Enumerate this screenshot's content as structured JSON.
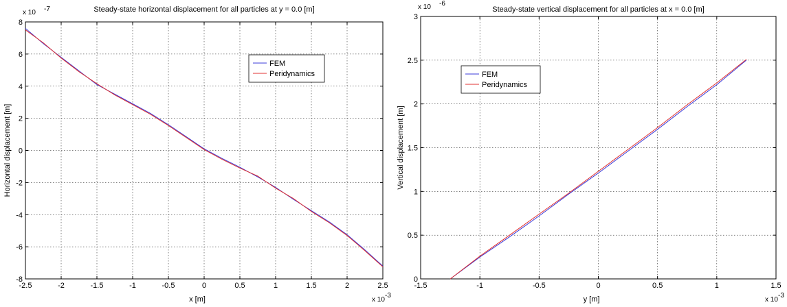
{
  "chart_data": [
    {
      "type": "line",
      "title": "Steady-state horizontal displacement for all particles at y = 0.0 [m]",
      "xlabel": "x [m]",
      "ylabel": "Horizontal displacement [m]",
      "x_multiplier": "x 10",
      "x_exponent": "-3",
      "y_multiplier": "x 10",
      "y_exponent": "-7",
      "xlim": [
        -2.5,
        2.5
      ],
      "ylim": [
        -8,
        8
      ],
      "xticks": [
        "-2.5",
        "-2",
        "-1.5",
        "-1",
        "-0.5",
        "0",
        "0.5",
        "1",
        "1.5",
        "2",
        "2.5"
      ],
      "yticks": [
        "-8",
        "-6",
        "-4",
        "-2",
        "0",
        "2",
        "4",
        "6",
        "8"
      ],
      "grid": true,
      "legend_position": "top-right",
      "series": [
        {
          "name": "FEM",
          "color": "#3a3ad8",
          "x": [
            -2.5,
            -2.25,
            -2.0,
            -1.75,
            -1.5,
            -1.25,
            -1.0,
            -0.75,
            -0.5,
            -0.25,
            0.0,
            0.25,
            0.5,
            0.75,
            1.0,
            1.25,
            1.5,
            1.75,
            2.0,
            2.25,
            2.5
          ],
          "y": [
            7.6,
            6.65,
            5.8,
            4.95,
            4.1,
            3.5,
            2.9,
            2.3,
            1.6,
            0.85,
            0.1,
            -0.5,
            -1.05,
            -1.65,
            -2.3,
            -3.05,
            -3.75,
            -4.45,
            -5.25,
            -6.2,
            -7.2
          ]
        },
        {
          "name": "Peridynamics",
          "color": "#e03030",
          "x": [
            -2.5,
            -2.25,
            -2.0,
            -1.75,
            -1.5,
            -1.25,
            -1.0,
            -0.75,
            -0.5,
            -0.25,
            0.0,
            0.25,
            0.5,
            0.75,
            1.0,
            1.25,
            1.5,
            1.75,
            2.0,
            2.25,
            2.5
          ],
          "y": [
            7.5,
            6.7,
            5.75,
            4.9,
            4.15,
            3.45,
            2.85,
            2.25,
            1.55,
            0.8,
            0.05,
            -0.55,
            -1.1,
            -1.6,
            -2.35,
            -3.0,
            -3.8,
            -4.5,
            -5.3,
            -6.25,
            -7.25
          ]
        }
      ]
    },
    {
      "type": "line",
      "title": "Steady-state vertical displacement for all particles at x = 0.0 [m]",
      "xlabel": "y [m]",
      "ylabel": "Vertical displacement [m]",
      "x_multiplier": "x 10",
      "x_exponent": "-3",
      "y_multiplier": "x 10",
      "y_exponent": "-6",
      "xlim": [
        -1.5,
        1.5
      ],
      "ylim": [
        0,
        3
      ],
      "xticks": [
        "-1.5",
        "-1",
        "-0.5",
        "0",
        "0.5",
        "1",
        "1.5"
      ],
      "yticks": [
        "0",
        "0.5",
        "1",
        "1.5",
        "2",
        "2.5",
        "3"
      ],
      "grid": true,
      "legend_position": "top-left",
      "series": [
        {
          "name": "FEM",
          "color": "#3a3ad8",
          "x": [
            -1.25,
            -1.0,
            -0.75,
            -0.5,
            -0.25,
            0.0,
            0.25,
            0.5,
            0.75,
            1.0,
            1.25
          ],
          "y": [
            0.0,
            0.25,
            0.48,
            0.72,
            0.97,
            1.21,
            1.46,
            1.71,
            1.97,
            2.22,
            2.5
          ]
        },
        {
          "name": "Peridynamics",
          "color": "#e03030",
          "x": [
            -1.25,
            -1.0,
            -0.75,
            -0.5,
            -0.25,
            0.0,
            0.25,
            0.5,
            0.75,
            1.0,
            1.25
          ],
          "y": [
            0.0,
            0.26,
            0.5,
            0.74,
            0.98,
            1.23,
            1.48,
            1.73,
            1.99,
            2.24,
            2.51
          ]
        }
      ]
    }
  ]
}
